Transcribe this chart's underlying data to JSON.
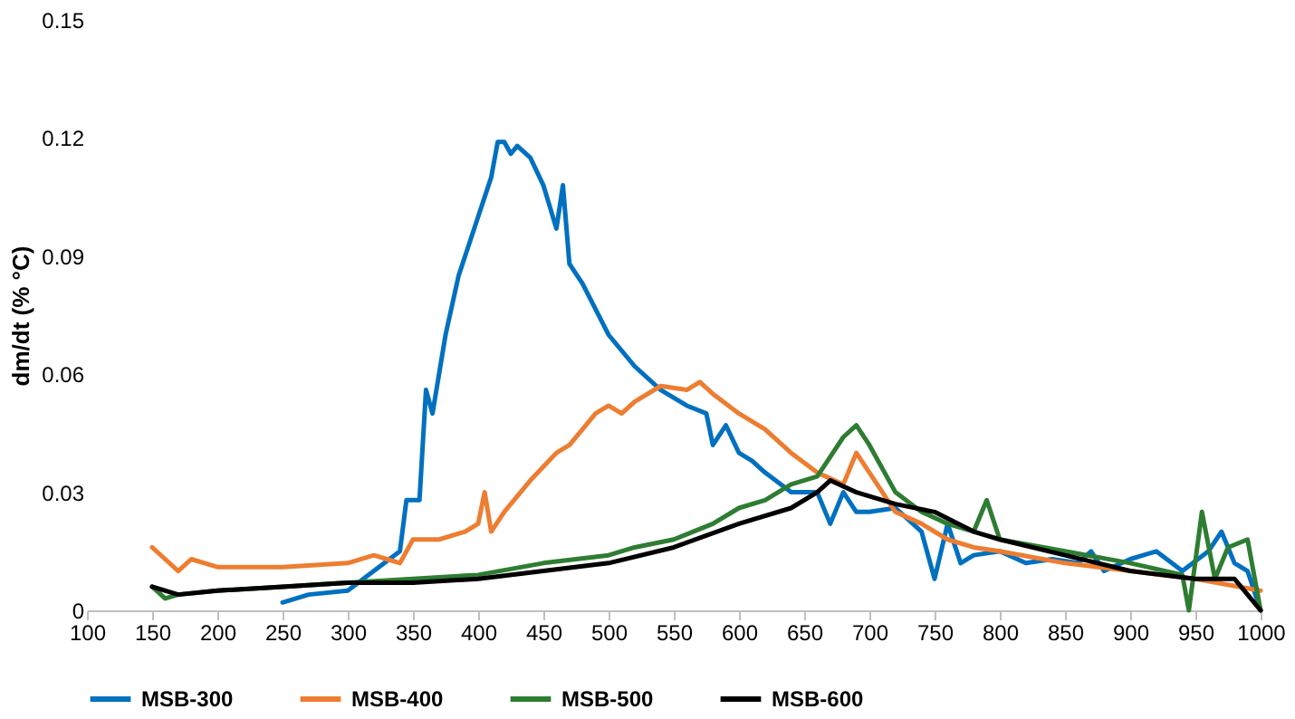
{
  "chart_data": {
    "type": "line",
    "ylabel": "dm/dt (% °C)",
    "xlim": [
      100,
      1000
    ],
    "xticks": [
      100,
      150,
      200,
      250,
      300,
      350,
      400,
      450,
      500,
      550,
      600,
      650,
      700,
      750,
      800,
      850,
      900,
      950,
      1000
    ],
    "ylim": [
      0,
      0.15
    ],
    "yticks": [
      0,
      0.03,
      0.06,
      0.09,
      0.12,
      0.15
    ],
    "grid": false,
    "legend": "bottom",
    "marker": "none",
    "line_style": "solid",
    "series": [
      {
        "name": "MSB-300",
        "color": "#0070c0",
        "x": [
          250,
          270,
          300,
          320,
          340,
          345,
          355,
          360,
          365,
          375,
          385,
          400,
          410,
          415,
          420,
          425,
          430,
          440,
          450,
          460,
          465,
          470,
          480,
          500,
          520,
          540,
          560,
          575,
          580,
          590,
          600,
          610,
          620,
          640,
          660,
          670,
          680,
          690,
          700,
          720,
          740,
          750,
          760,
          770,
          780,
          800,
          820,
          840,
          860,
          870,
          880,
          900,
          920,
          940,
          960,
          970,
          980,
          990,
          1000
        ],
        "values": [
          0.002,
          0.004,
          0.005,
          0.01,
          0.015,
          0.028,
          0.028,
          0.056,
          0.05,
          0.07,
          0.085,
          0.1,
          0.11,
          0.119,
          0.119,
          0.116,
          0.118,
          0.115,
          0.108,
          0.097,
          0.108,
          0.088,
          0.083,
          0.07,
          0.062,
          0.056,
          0.052,
          0.05,
          0.042,
          0.047,
          0.04,
          0.038,
          0.035,
          0.03,
          0.03,
          0.022,
          0.03,
          0.025,
          0.025,
          0.026,
          0.02,
          0.008,
          0.022,
          0.012,
          0.014,
          0.015,
          0.012,
          0.013,
          0.012,
          0.015,
          0.01,
          0.013,
          0.015,
          0.01,
          0.015,
          0.02,
          0.012,
          0.01,
          0
        ]
      },
      {
        "name": "MSB-400",
        "color": "#ed7d31",
        "x": [
          150,
          160,
          170,
          180,
          200,
          250,
          300,
          320,
          330,
          340,
          350,
          370,
          390,
          400,
          405,
          410,
          420,
          440,
          460,
          470,
          480,
          490,
          500,
          510,
          520,
          540,
          560,
          570,
          580,
          600,
          620,
          640,
          660,
          680,
          690,
          700,
          710,
          720,
          740,
          760,
          780,
          800,
          850,
          900,
          950,
          1000
        ],
        "values": [
          0.016,
          0.013,
          0.01,
          0.013,
          0.011,
          0.011,
          0.012,
          0.014,
          0.013,
          0.012,
          0.018,
          0.018,
          0.02,
          0.022,
          0.03,
          0.02,
          0.025,
          0.033,
          0.04,
          0.042,
          0.046,
          0.05,
          0.052,
          0.05,
          0.053,
          0.057,
          0.056,
          0.058,
          0.055,
          0.05,
          0.046,
          0.04,
          0.035,
          0.032,
          0.04,
          0.035,
          0.03,
          0.025,
          0.022,
          0.018,
          0.016,
          0.015,
          0.012,
          0.01,
          0.008,
          0.005
        ]
      },
      {
        "name": "MSB-500",
        "color": "#2e7d32",
        "x": [
          150,
          160,
          170,
          200,
          250,
          300,
          350,
          400,
          450,
          500,
          520,
          550,
          580,
          600,
          620,
          640,
          660,
          680,
          690,
          700,
          720,
          740,
          760,
          780,
          790,
          800,
          850,
          900,
          940,
          945,
          955,
          965,
          975,
          990,
          1000
        ],
        "values": [
          0.006,
          0.003,
          0.004,
          0.005,
          0.006,
          0.007,
          0.008,
          0.009,
          0.012,
          0.014,
          0.016,
          0.018,
          0.022,
          0.026,
          0.028,
          0.032,
          0.034,
          0.044,
          0.047,
          0.042,
          0.03,
          0.025,
          0.022,
          0.02,
          0.028,
          0.018,
          0.015,
          0.012,
          0.009,
          0,
          0.025,
          0.008,
          0.016,
          0.018,
          0
        ]
      },
      {
        "name": "MSB-600",
        "color": "#000000",
        "x": [
          150,
          170,
          200,
          250,
          300,
          350,
          400,
          450,
          500,
          550,
          600,
          640,
          660,
          670,
          690,
          720,
          750,
          780,
          800,
          850,
          900,
          950,
          980,
          990,
          1000
        ],
        "values": [
          0.006,
          0.004,
          0.005,
          0.006,
          0.007,
          0.007,
          0.008,
          0.01,
          0.012,
          0.016,
          0.022,
          0.026,
          0.03,
          0.033,
          0.03,
          0.027,
          0.025,
          0.02,
          0.018,
          0.014,
          0.01,
          0.008,
          0.008,
          0.004,
          0
        ]
      }
    ]
  }
}
